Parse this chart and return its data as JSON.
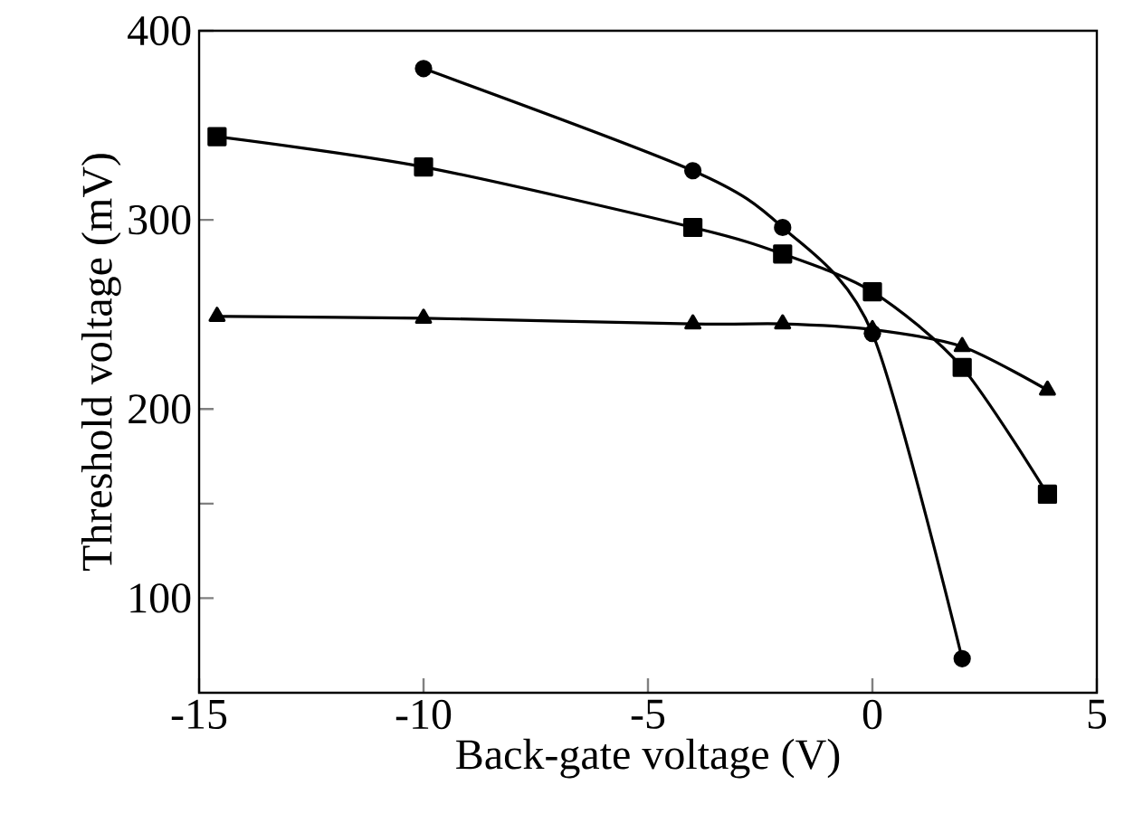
{
  "chart_data": {
    "type": "line",
    "xlabel": "Back-gate voltage (V)",
    "ylabel": "Threshold voltage (mV)",
    "xlim": [
      -15,
      5
    ],
    "xticks": [
      -15,
      -10,
      -5,
      0,
      5
    ],
    "ylim": [
      50,
      400
    ],
    "yticks": [
      100,
      {
        "value": 150,
        "label": null
      },
      200,
      300,
      400
    ],
    "grid": false,
    "series": [
      {
        "color": "#000000",
        "marker": "circle",
        "x": [
          -10,
          -4,
          -2,
          0,
          2
        ],
        "values": [
          380,
          326,
          296,
          240,
          68
        ]
      },
      {
        "color": "#000000",
        "marker": "square",
        "x": [
          -14.6,
          -10,
          -4,
          -2,
          0,
          2,
          3.9
        ],
        "values": [
          344,
          328,
          296,
          282,
          262,
          222,
          155
        ]
      },
      {
        "color": "#000000",
        "marker": "triangle",
        "x": [
          -14.6,
          -10,
          -4,
          -2,
          0,
          2,
          3.9
        ],
        "values": [
          249,
          248,
          245,
          245,
          242,
          233,
          210
        ]
      }
    ]
  }
}
